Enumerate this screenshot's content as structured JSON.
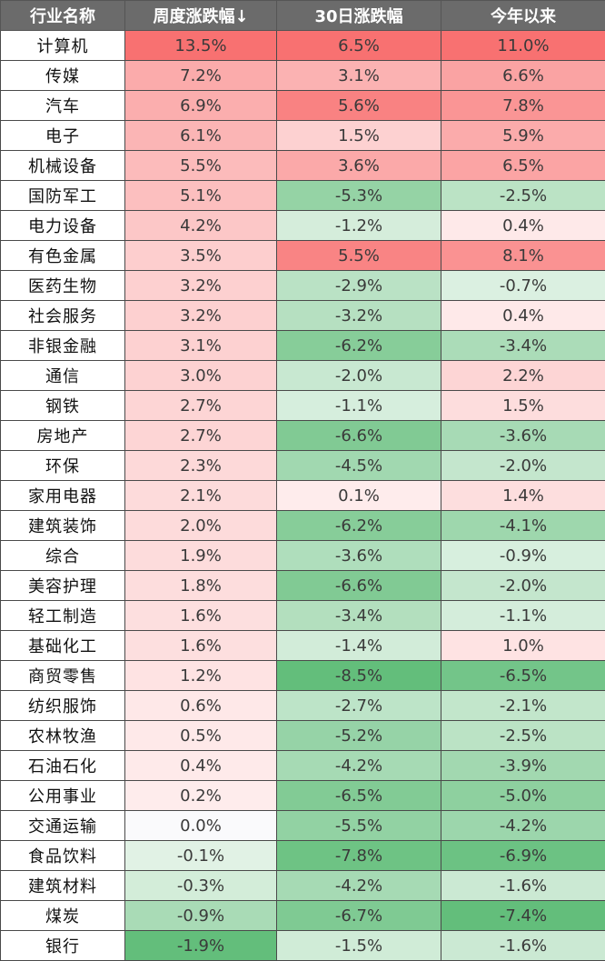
{
  "chart_data": {
    "type": "heatmap",
    "columns": [
      "行业名称",
      "周度涨跌幅↓",
      "30日涨跌幅",
      "今年以来"
    ],
    "rows": [
      {
        "name": "计算机",
        "weekly": "13.5%",
        "d30": "6.5%",
        "ytd": "11.0%"
      },
      {
        "name": "传媒",
        "weekly": "7.2%",
        "d30": "3.1%",
        "ytd": "6.6%"
      },
      {
        "name": "汽车",
        "weekly": "6.9%",
        "d30": "5.6%",
        "ytd": "7.8%"
      },
      {
        "name": "电子",
        "weekly": "6.1%",
        "d30": "1.5%",
        "ytd": "5.9%"
      },
      {
        "name": "机械设备",
        "weekly": "5.5%",
        "d30": "3.6%",
        "ytd": "6.5%"
      },
      {
        "name": "国防军工",
        "weekly": "5.1%",
        "d30": "-5.3%",
        "ytd": "-2.5%"
      },
      {
        "name": "电力设备",
        "weekly": "4.2%",
        "d30": "-1.2%",
        "ytd": "0.4%"
      },
      {
        "name": "有色金属",
        "weekly": "3.5%",
        "d30": "5.5%",
        "ytd": "8.1%"
      },
      {
        "name": "医药生物",
        "weekly": "3.2%",
        "d30": "-2.9%",
        "ytd": "-0.7%"
      },
      {
        "name": "社会服务",
        "weekly": "3.2%",
        "d30": "-3.2%",
        "ytd": "0.4%"
      },
      {
        "name": "非银金融",
        "weekly": "3.1%",
        "d30": "-6.2%",
        "ytd": "-3.4%"
      },
      {
        "name": "通信",
        "weekly": "3.0%",
        "d30": "-2.0%",
        "ytd": "2.2%"
      },
      {
        "name": "钢铁",
        "weekly": "2.7%",
        "d30": "-1.1%",
        "ytd": "1.5%"
      },
      {
        "name": "房地产",
        "weekly": "2.7%",
        "d30": "-6.6%",
        "ytd": "-3.6%"
      },
      {
        "name": "环保",
        "weekly": "2.3%",
        "d30": "-4.5%",
        "ytd": "-2.0%"
      },
      {
        "name": "家用电器",
        "weekly": "2.1%",
        "d30": "0.1%",
        "ytd": "1.4%"
      },
      {
        "name": "建筑装饰",
        "weekly": "2.0%",
        "d30": "-6.2%",
        "ytd": "-4.1%"
      },
      {
        "name": "综合",
        "weekly": "1.9%",
        "d30": "-3.6%",
        "ytd": "-0.9%"
      },
      {
        "name": "美容护理",
        "weekly": "1.8%",
        "d30": "-6.6%",
        "ytd": "-2.0%"
      },
      {
        "name": "轻工制造",
        "weekly": "1.6%",
        "d30": "-3.4%",
        "ytd": "-1.1%"
      },
      {
        "name": "基础化工",
        "weekly": "1.6%",
        "d30": "-1.4%",
        "ytd": "1.0%"
      },
      {
        "name": "商贸零售",
        "weekly": "1.2%",
        "d30": "-8.5%",
        "ytd": "-6.5%"
      },
      {
        "name": "纺织服饰",
        "weekly": "0.6%",
        "d30": "-2.7%",
        "ytd": "-2.1%"
      },
      {
        "name": "农林牧渔",
        "weekly": "0.5%",
        "d30": "-5.2%",
        "ytd": "-2.5%"
      },
      {
        "name": "石油石化",
        "weekly": "0.4%",
        "d30": "-4.2%",
        "ytd": "-3.9%"
      },
      {
        "name": "公用事业",
        "weekly": "0.2%",
        "d30": "-6.5%",
        "ytd": "-5.0%"
      },
      {
        "name": "交通运输",
        "weekly": "0.0%",
        "d30": "-5.5%",
        "ytd": "-4.2%"
      },
      {
        "name": "食品饮料",
        "weekly": "-0.1%",
        "d30": "-7.8%",
        "ytd": "-6.9%"
      },
      {
        "name": "建筑材料",
        "weekly": "-0.3%",
        "d30": "-4.2%",
        "ytd": "-1.6%"
      },
      {
        "name": "煤炭",
        "weekly": "-0.9%",
        "d30": "-6.7%",
        "ytd": "-7.4%"
      },
      {
        "name": "银行",
        "weekly": "-1.9%",
        "d30": "-1.5%",
        "ytd": "-1.6%"
      }
    ],
    "color_scale": {
      "positive": "#f87171",
      "neutral": "#ffffff",
      "negative": "#63be7b"
    },
    "header_bg": "#6b6b6b",
    "sort": "周度涨跌幅 descending"
  }
}
